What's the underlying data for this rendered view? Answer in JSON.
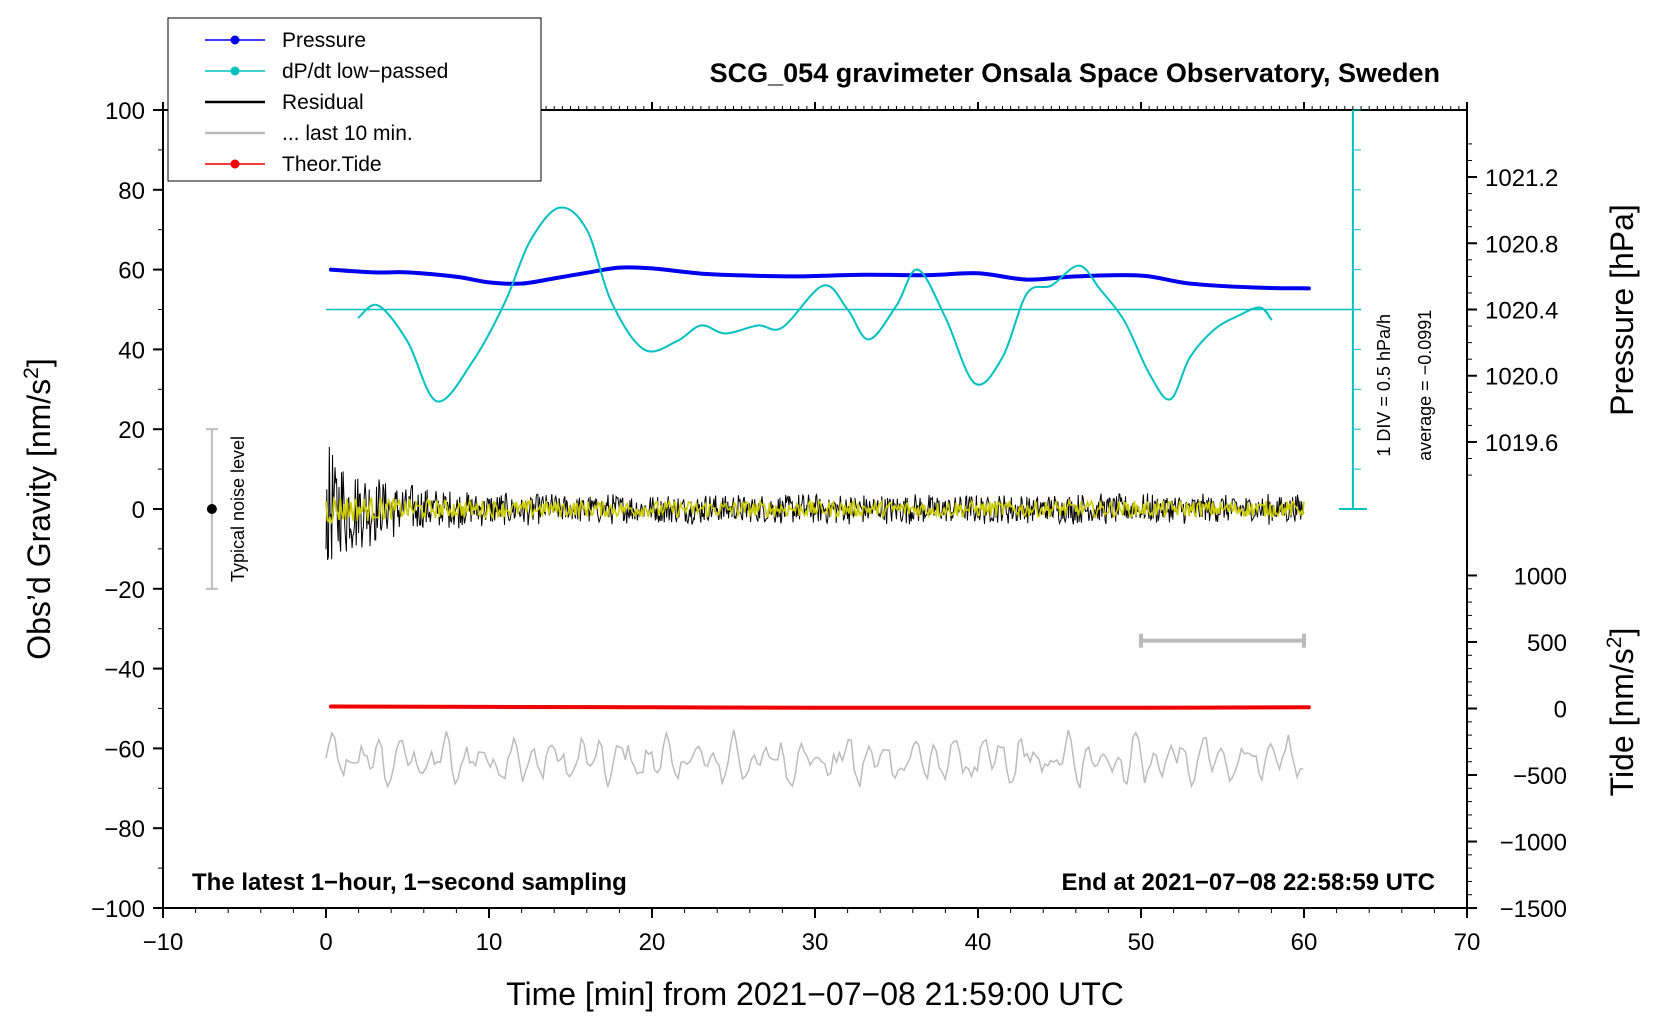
{
  "chart_data": {
    "type": "line",
    "title": "SCG_054 gravimeter Onsala Space Observatory, Sweden",
    "xlabel": "Time [min] from 2021−07−08 21:59:00 UTC",
    "ylabel_left": "Obs’d Gravity [nm/s",
    "ylabel_left_sup": "2",
    "ylabel_left_end": "]",
    "ylabel_right_top": "Pressure [hPa]",
    "ylabel_right_bottom": "Tide [nm/s",
    "ylabel_right_bottom_sup": "2",
    "ylabel_right_bottom_end": "]",
    "xlim": [
      -10,
      70
    ],
    "ylim": [
      -100,
      100
    ],
    "x_ticks": [
      -10,
      0,
      10,
      20,
      30,
      40,
      50,
      60,
      70
    ],
    "x_tick_labels": [
      "−10",
      "0",
      "10",
      "20",
      "30",
      "40",
      "50",
      "60",
      "70"
    ],
    "y_ticks": [
      100,
      80,
      60,
      40,
      20,
      0,
      -20,
      -40,
      -60,
      -80,
      -100
    ],
    "y_tick_labels": [
      "100",
      "80",
      "60",
      "40",
      "20",
      "0",
      "−20",
      "−40",
      "−60",
      "−80",
      "−100"
    ],
    "pressure_ticks": [
      {
        "value": 1021.2,
        "label": "1021.2"
      },
      {
        "value": 1020.8,
        "label": "1020.8"
      },
      {
        "value": 1020.4,
        "label": "1020.4"
      },
      {
        "value": 1020.0,
        "label": "1020.0"
      },
      {
        "value": 1019.6,
        "label": "1019.6"
      }
    ],
    "tide_ticks": [
      {
        "value": 1000,
        "label": "1000"
      },
      {
        "value": 500,
        "label": "500"
      },
      {
        "value": 0,
        "label": "0"
      },
      {
        "value": -500,
        "label": "−500"
      },
      {
        "value": -1000,
        "label": "−1000"
      },
      {
        "value": -1500,
        "label": "−1500"
      }
    ],
    "legend": [
      {
        "label": "Pressure",
        "color": "#0000ee",
        "marker": true
      },
      {
        "label": "dP/dt low−passed",
        "color": "#00c0c0",
        "marker": true
      },
      {
        "label": "Residual",
        "color": "#000000",
        "marker": false
      },
      {
        "label": "... last 10 min.",
        "color": "#bbbbbb",
        "marker": false
      },
      {
        "label": "Theor.Tide",
        "color": "#ee0000",
        "marker": true
      }
    ],
    "series": [
      {
        "name": "Pressure",
        "color": "#0000ee",
        "x": [
          0.3,
          3,
          5,
          8,
          10,
          12,
          14,
          16,
          18,
          20,
          23,
          26,
          29,
          33,
          37,
          40,
          43,
          46,
          50,
          53,
          57,
          60.3
        ],
        "values": [
          60,
          59.3,
          59.3,
          58.2,
          56.8,
          56.5,
          57.8,
          59.2,
          60.5,
          60.3,
          59,
          58.5,
          58.3,
          58.7,
          58.6,
          59.1,
          57.5,
          58.3,
          58.5,
          56.5,
          55.5,
          55.3
        ]
      },
      {
        "name": "dP/dt low−passed",
        "color": "#00c0c0",
        "x": [
          2,
          3.2,
          5,
          6.8,
          9,
          11,
          12.5,
          14.3,
          16,
          17.5,
          19.5,
          21.5,
          23,
          24.5,
          26.5,
          28,
          30.5,
          32,
          33.3,
          35,
          36.3,
          38,
          39.8,
          41.5,
          43,
          44.5,
          46.2,
          47.5,
          49,
          50.5,
          51.8,
          53,
          54.5,
          56,
          57.3,
          58
        ],
        "values": [
          48,
          51,
          42,
          27,
          37,
          52,
          67,
          75.5,
          70,
          52,
          40,
          42,
          46,
          44,
          46,
          45.5,
          56,
          50,
          42.5,
          51,
          60,
          48,
          31.5,
          38,
          54,
          56,
          61,
          55,
          47,
          34,
          27.5,
          38,
          45,
          48.5,
          50.5,
          47.5
        ]
      },
      {
        "name": "Theor.Tide",
        "color": "#ee0000",
        "x": [
          0.3,
          10,
          20,
          30,
          40,
          50,
          60.3
        ],
        "values": [
          -49.5,
          -49.6,
          -49.7,
          -49.8,
          -49.8,
          -49.8,
          -49.7
        ]
      }
    ],
    "residual": {
      "color": "#000000",
      "x_start": 0,
      "x_end": 60,
      "typical_amplitude": 4,
      "initial_amplitude": 18
    },
    "last_10_min": {
      "color": "#cccc00",
      "amplitude": 2
    },
    "noise_trace": {
      "color": "#bbbbbb",
      "x_start": 0,
      "x_end": 60,
      "center": -63
    },
    "reference_line": {
      "value": 50,
      "color": "#00c0c0"
    },
    "typical_noise": {
      "label": "Typical noise level",
      "x": -7,
      "center": 0,
      "low": -20,
      "high": 20
    },
    "range_bar": {
      "x_start": 50,
      "x_end": 60,
      "y": -33
    },
    "dpdt_scale": {
      "label": "1 DIV = 0.5 hPa/h",
      "average_label": "average = −0.0991",
      "x": 63
    },
    "annotation_left": "The latest 1−hour, 1−second sampling",
    "annotation_right": "End at 2021−07−08 22:58:59 UTC"
  }
}
